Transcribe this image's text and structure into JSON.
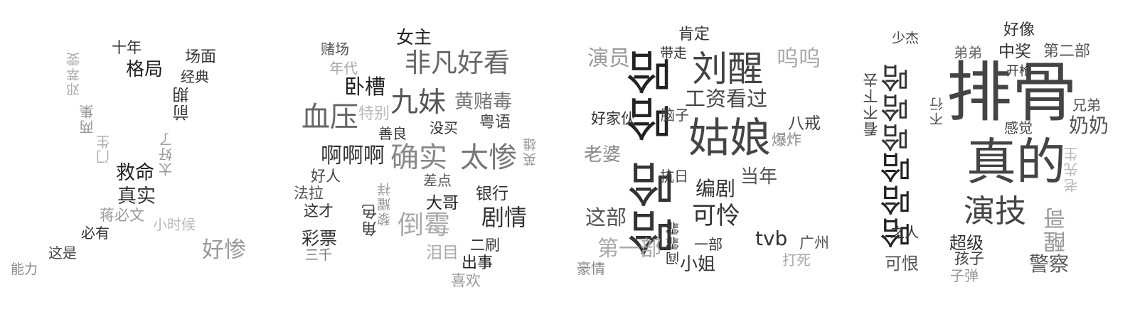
{
  "clouds": [
    {
      "words": [
        {
          "text": "十年",
          "color": "#333333"
        },
        {
          "text": "场面",
          "color": "#333333"
        },
        {
          "text": "格局",
          "color": "#222222"
        },
        {
          "text": "经典",
          "color": "#333333"
        },
        {
          "text": "邓萃雯",
          "color": "#aaaaaa"
        },
        {
          "text": "前期",
          "color": "#333333"
        },
        {
          "text": "两集",
          "color": "#999999"
        },
        {
          "text": "门生",
          "color": "#aaaaaa"
        },
        {
          "text": "太好了",
          "color": "#999999"
        },
        {
          "text": "救命",
          "color": "#222222"
        },
        {
          "text": "真实",
          "color": "#333333"
        },
        {
          "text": "蒋必文",
          "color": "#999999"
        },
        {
          "text": "小时候",
          "color": "#bbbbbb"
        },
        {
          "text": "必有",
          "color": "#333333"
        },
        {
          "text": "这是",
          "color": "#444444"
        },
        {
          "text": "好惨",
          "color": "#999999"
        },
        {
          "text": "能力",
          "color": "#888888"
        }
      ]
    },
    {
      "words": [
        {
          "text": "赌场",
          "color": "#555555"
        },
        {
          "text": "女主",
          "color": "#222222"
        },
        {
          "text": "年代",
          "color": "#aaaaaa"
        },
        {
          "text": "非凡好看",
          "color": "#666666"
        },
        {
          "text": "卧槽",
          "color": "#222222"
        },
        {
          "text": "九妹",
          "color": "#555555"
        },
        {
          "text": "黄赌毒",
          "color": "#777777"
        },
        {
          "text": "血压",
          "color": "#666666"
        },
        {
          "text": "特别",
          "color": "#bbbbbb"
        },
        {
          "text": "善良",
          "color": "#333333"
        },
        {
          "text": "没买",
          "color": "#333333"
        },
        {
          "text": "粤语",
          "color": "#444444"
        },
        {
          "text": "啊啊啊",
          "color": "#333333"
        },
        {
          "text": "确实",
          "color": "#888888"
        },
        {
          "text": "太惨",
          "color": "#777777"
        },
        {
          "text": "英雄",
          "color": "#999999"
        },
        {
          "text": "好人",
          "color": "#444444"
        },
        {
          "text": "差点",
          "color": "#555555"
        },
        {
          "text": "黎耀祥",
          "color": "#999999"
        },
        {
          "text": "法拉",
          "color": "#555555"
        },
        {
          "text": "大哥",
          "color": "#222222"
        },
        {
          "text": "银行",
          "color": "#333333"
        },
        {
          "text": "这才",
          "color": "#333333"
        },
        {
          "text": "角色",
          "color": "#444444"
        },
        {
          "text": "倒霉",
          "color": "#aaaaaa"
        },
        {
          "text": "剧情",
          "color": "#333333"
        },
        {
          "text": "彩票",
          "color": "#333333"
        },
        {
          "text": "三千",
          "color": "#777777"
        },
        {
          "text": "二刷",
          "color": "#333333"
        },
        {
          "text": "泪目",
          "color": "#aaaaaa"
        },
        {
          "text": "出事",
          "color": "#222222"
        },
        {
          "text": "喜欢",
          "color": "#999999"
        }
      ]
    },
    {
      "words": [
        {
          "text": "肯定",
          "color": "#333333"
        },
        {
          "text": "带走",
          "color": "#333333"
        },
        {
          "text": "演员",
          "color": "#999999"
        },
        {
          "text": "哈哈",
          "color": "#222222"
        },
        {
          "text": "刘醒",
          "color": "#444444"
        },
        {
          "text": "呜呜",
          "color": "#aaaaaa"
        },
        {
          "text": "工资看过",
          "color": "#444444"
        },
        {
          "text": "好家伙",
          "color": "#333333"
        },
        {
          "text": "脑子",
          "color": "#444444"
        },
        {
          "text": "姑娘",
          "color": "#444444"
        },
        {
          "text": "八戒",
          "color": "#444444"
        },
        {
          "text": "爆炸",
          "color": "#888888"
        },
        {
          "text": "老婆",
          "color": "#888888"
        },
        {
          "text": "哈哈",
          "color": "#333333"
        },
        {
          "text": "抗日",
          "color": "#444444"
        },
        {
          "text": "编剧",
          "color": "#333333"
        },
        {
          "text": "当年",
          "color": "#555555"
        },
        {
          "text": "这部",
          "color": "#555555"
        },
        {
          "text": "可怜",
          "color": "#333333"
        },
        {
          "text": "阎霏霏",
          "color": "#333333"
        },
        {
          "text": "第一部",
          "color": "#aaaaaa"
        },
        {
          "text": "一部",
          "color": "#333333"
        },
        {
          "text": "tvb",
          "color": "#333333"
        },
        {
          "text": "广州",
          "color": "#555555"
        },
        {
          "text": "豪情",
          "color": "#888888"
        },
        {
          "text": "小姐",
          "color": "#333333"
        },
        {
          "text": "打死",
          "color": "#aaaaaa"
        }
      ]
    },
    {
      "words": [
        {
          "text": "少杰",
          "color": "#444444"
        },
        {
          "text": "好像",
          "color": "#333333"
        },
        {
          "text": "弟弟",
          "color": "#666666"
        },
        {
          "text": "中奖",
          "color": "#333333"
        },
        {
          "text": "第二部",
          "color": "#555555"
        },
        {
          "text": "开枪",
          "color": "#333333"
        },
        {
          "text": "看不下去",
          "color": "#444444"
        },
        {
          "text": "哈哈哈",
          "color": "#333333"
        },
        {
          "text": "不行",
          "color": "#555555"
        },
        {
          "text": "排骨",
          "color": "#444444"
        },
        {
          "text": "兄弟",
          "color": "#555555"
        },
        {
          "text": "感觉",
          "color": "#444444"
        },
        {
          "text": "奶奶",
          "color": "#555555"
        },
        {
          "text": "真的",
          "color": "#444444"
        },
        {
          "text": "老先生",
          "color": "#bbbbbb"
        },
        {
          "text": "哈哈哈",
          "color": "#222222"
        },
        {
          "text": "演技",
          "color": "#444444"
        },
        {
          "text": "醒哥",
          "color": "#999999"
        },
        {
          "text": "之人",
          "color": "#333333"
        },
        {
          "text": "超级",
          "color": "#333333"
        },
        {
          "text": "可恨",
          "color": "#555555"
        },
        {
          "text": "孩子",
          "color": "#444444"
        },
        {
          "text": "警察",
          "color": "#555555"
        },
        {
          "text": "子弹",
          "color": "#999999"
        }
      ]
    }
  ]
}
